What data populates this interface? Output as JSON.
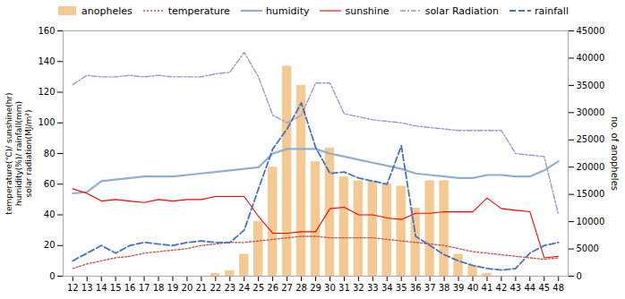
{
  "chart_data": {
    "type": "bar",
    "categories": [
      "12",
      "13",
      "14",
      "15",
      "16",
      "17",
      "18",
      "19",
      "20",
      "21",
      "22",
      "23",
      "24",
      "25",
      "26",
      "27",
      "28",
      "29",
      "30",
      "31",
      "32",
      "33",
      "34",
      "35",
      "36",
      "37",
      "38",
      "39",
      "40",
      "41",
      "42",
      "43",
      "44",
      "45",
      "48"
    ],
    "series": [
      {
        "name": "anopheles",
        "type": "bar",
        "axis": "y2",
        "color": "#F5C992",
        "values": [
          0,
          0,
          0,
          0,
          0,
          0,
          0,
          0,
          0,
          0,
          500,
          1000,
          4000,
          10000,
          20000,
          38500,
          35000,
          21000,
          23500,
          18200,
          17500,
          17500,
          17000,
          16500,
          12500,
          17500,
          17500,
          4000,
          2000,
          500,
          0,
          0,
          0,
          0,
          0
        ]
      },
      {
        "name": "temperature",
        "type": "line",
        "color": "#C0504D",
        "line_style": "dotted",
        "values": [
          5,
          8,
          10,
          12,
          13,
          15,
          16,
          17,
          18,
          20,
          21,
          22,
          22,
          23,
          24,
          25,
          26,
          26,
          25,
          25,
          25,
          25,
          24,
          23,
          22,
          21,
          20,
          18,
          16,
          15,
          14,
          13,
          12,
          11,
          12
        ]
      },
      {
        "name": "humidity",
        "type": "line",
        "color": "#92AECF",
        "line_style": "solid",
        "values": [
          54,
          55,
          62,
          63,
          64,
          65,
          65,
          65,
          66,
          67,
          68,
          69,
          70,
          71,
          80,
          83,
          83,
          83,
          80,
          78,
          76,
          74,
          72,
          70,
          67,
          66,
          65,
          64,
          64,
          66,
          66,
          65,
          65,
          69,
          75
        ]
      },
      {
        "name": "sunshine",
        "type": "line",
        "color": "#FF0000",
        "line_style": "solid",
        "values": [
          57,
          54,
          49,
          50,
          49,
          48,
          50,
          49,
          50,
          50,
          52,
          52,
          52,
          39,
          28,
          28,
          29,
          29,
          44,
          45,
          40,
          40,
          38,
          37,
          41,
          41,
          42,
          42,
          42,
          51,
          44,
          43,
          42,
          12,
          13
        ]
      },
      {
        "name": "solar Radiation",
        "type": "line",
        "color": "#9999CC",
        "line_style": "dashdot",
        "values": [
          125,
          131,
          130,
          130,
          131,
          130,
          131,
          130,
          130,
          130,
          132,
          133,
          146,
          130,
          105,
          100,
          105,
          126,
          126,
          106,
          104,
          102,
          101,
          100,
          98,
          97,
          96,
          95,
          95,
          95,
          95,
          80,
          79,
          78,
          40
        ]
      },
      {
        "name": "rainfall",
        "type": "line",
        "color": "#4472C4",
        "line_style": "dashed",
        "values": [
          10,
          15,
          20,
          15,
          20,
          22,
          21,
          20,
          22,
          23,
          22,
          22,
          30,
          57,
          83,
          96,
          113,
          84,
          67,
          68,
          64,
          62,
          60,
          85,
          26,
          20,
          14,
          10,
          7,
          5,
          4,
          5,
          15,
          20,
          22
        ]
      }
    ],
    "ylabel": "temperature(℃)/ sunshine(hr)\nhumidity(%)/ rainfall(mm)\nsolar radiation(MJ/m²)",
    "y2label": "no. of anopheles",
    "ylim": [
      0,
      160
    ],
    "yticks": [
      0,
      20,
      40,
      60,
      80,
      100,
      120,
      140,
      160
    ],
    "y2lim": [
      0,
      45000
    ],
    "y2ticks": [
      0,
      5000,
      10000,
      15000,
      20000,
      25000,
      30000,
      35000,
      40000,
      45000
    ],
    "grid": false,
    "legend": "top"
  }
}
